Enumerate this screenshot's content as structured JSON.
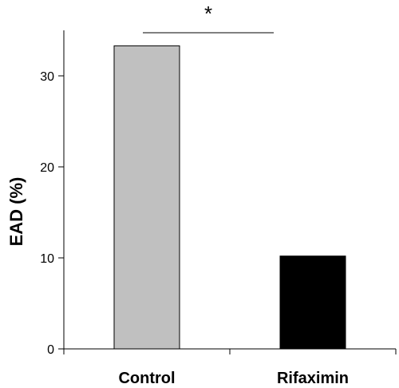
{
  "chart_data": {
    "type": "bar",
    "categories": [
      "Control",
      "Rifaximin"
    ],
    "values": [
      33.3,
      10.2
    ],
    "colors": [
      "#c0c0c0",
      "#000000"
    ],
    "title": "",
    "xlabel": "",
    "ylabel": "EAD (%)",
    "ylim": [
      0,
      35
    ],
    "yticks": [
      0,
      10,
      20,
      30
    ],
    "grid": false,
    "significance": {
      "from": 0,
      "to": 1,
      "label": "*"
    }
  }
}
